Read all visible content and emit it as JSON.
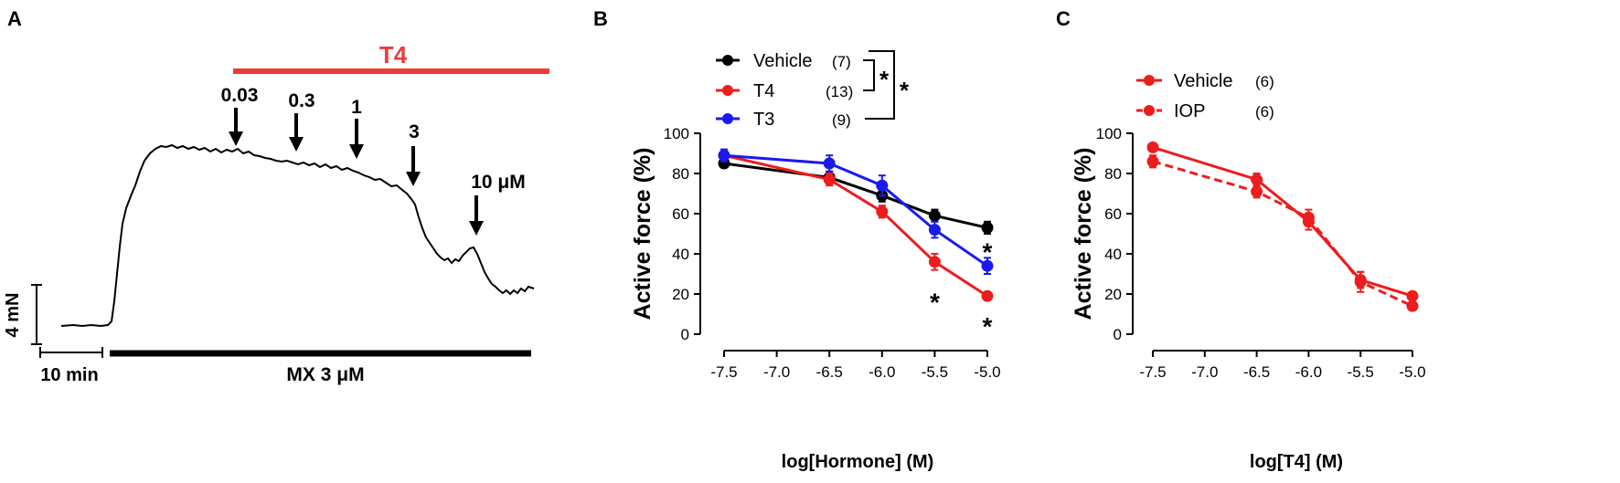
{
  "chart_data": [
    {
      "panel": "A",
      "type": "line",
      "trace_description": "isometric force trace",
      "treatment_bar_label": "T4",
      "dose_annotations": [
        "0.03",
        "0.3",
        "1",
        "3",
        "10 μM"
      ],
      "scale_bar_force": "4 mN",
      "scale_bar_time": "10 min",
      "baseline_bar_label": "MX 3 μM"
    },
    {
      "panel": "B",
      "type": "line",
      "xlabel": "log[Hormone] (M)",
      "ylabel": "Active force (%)",
      "xlim": [
        -7.5,
        -5.0
      ],
      "ylim": [
        0,
        100
      ],
      "xticks": [
        -7.5,
        -7.0,
        -6.5,
        -6.0,
        -5.5,
        -5.0
      ],
      "xtick_labels": [
        "-7.5",
        "-7.0",
        "-6.5",
        "-6.0",
        "-5.5",
        "-5.0"
      ],
      "yticks": [
        0,
        20,
        40,
        60,
        80,
        100
      ],
      "series": [
        {
          "name": "Vehicle",
          "n": "(7)",
          "color": "#000000",
          "dashed": false,
          "x": [
            -7.5,
            -6.5,
            -6.0,
            -5.5,
            -5.0
          ],
          "y": [
            85,
            78,
            69,
            59,
            53
          ],
          "err": [
            2,
            3,
            3,
            3,
            3
          ]
        },
        {
          "name": "T4",
          "n": "(13)",
          "color": "#ee1c1c",
          "dashed": false,
          "x": [
            -7.5,
            -6.5,
            -6.0,
            -5.5,
            -5.0
          ],
          "y": [
            89,
            77,
            61,
            36,
            19
          ],
          "err": [
            2,
            3,
            3,
            4,
            2
          ]
        },
        {
          "name": "T3",
          "n": "(9)",
          "color": "#1a1aee",
          "dashed": false,
          "x": [
            -7.5,
            -6.5,
            -6.0,
            -5.5,
            -5.0
          ],
          "y": [
            89,
            85,
            74,
            52,
            34
          ],
          "err": [
            3,
            4,
            5,
            4,
            4
          ]
        }
      ],
      "significance_marks": [
        {
          "x": -5.5,
          "y": 18,
          "label": "*"
        },
        {
          "x": -5.0,
          "y": 43,
          "label": "*"
        },
        {
          "x": -5.0,
          "y": 6,
          "label": "*"
        }
      ],
      "legend_significance": [
        "*",
        "*"
      ]
    },
    {
      "panel": "C",
      "type": "line",
      "xlabel": "log[T4] (M)",
      "ylabel": "Active force (%)",
      "xlim": [
        -7.5,
        -5.0
      ],
      "ylim": [
        0,
        100
      ],
      "xticks": [
        -7.5,
        -7.0,
        -6.5,
        -6.0,
        -5.5,
        -5.0
      ],
      "xtick_labels": [
        "-7.5",
        "-7.0",
        "-6.5",
        "-6.0",
        "-5.5",
        "-5.0"
      ],
      "yticks": [
        0,
        20,
        40,
        60,
        80,
        100
      ],
      "series": [
        {
          "name": "Vehicle",
          "n": "(6)",
          "color": "#ee1c1c",
          "dashed": false,
          "x": [
            -7.5,
            -6.5,
            -6.0,
            -5.5,
            -5.0
          ],
          "y": [
            93,
            77,
            56,
            27,
            19
          ],
          "err": [
            2,
            3,
            4,
            4,
            2
          ]
        },
        {
          "name": "IOP",
          "n": "(6)",
          "color": "#ee1c1c",
          "dashed": true,
          "x": [
            -7.5,
            -6.5,
            -6.0,
            -5.5,
            -5.0
          ],
          "y": [
            86,
            71,
            58,
            26,
            14
          ],
          "err": [
            3,
            3,
            4,
            5,
            2
          ]
        }
      ]
    }
  ]
}
